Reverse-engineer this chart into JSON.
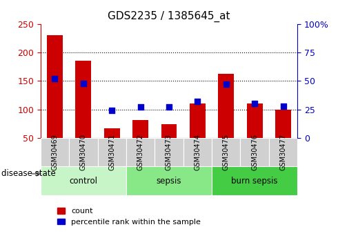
{
  "title": "GDS2235 / 1385645_at",
  "samples": [
    "GSM30469",
    "GSM30470",
    "GSM30471",
    "GSM30472",
    "GSM30473",
    "GSM30474",
    "GSM30475",
    "GSM30476",
    "GSM30477"
  ],
  "counts": [
    230,
    185,
    67,
    82,
    74,
    110,
    163,
    110,
    100
  ],
  "percentiles": [
    52,
    48,
    24,
    27,
    27,
    32,
    47,
    30,
    28
  ],
  "groups": [
    {
      "label": "control",
      "indices": [
        0,
        1,
        2
      ],
      "color": "#c8f5c8"
    },
    {
      "label": "sepsis",
      "indices": [
        3,
        4,
        5
      ],
      "color": "#88e888"
    },
    {
      "label": "burn sepsis",
      "indices": [
        6,
        7,
        8
      ],
      "color": "#44cc44"
    }
  ],
  "bar_color": "#cc0000",
  "dot_color": "#0000cc",
  "ylim_left": [
    50,
    250
  ],
  "ylim_right": [
    0,
    100
  ],
  "yticks_left": [
    50,
    100,
    150,
    200,
    250
  ],
  "yticks_right": [
    0,
    25,
    50,
    75,
    100
  ],
  "grid_dotted_at": [
    100,
    150,
    200
  ],
  "tick_label_color_left": "#cc0000",
  "tick_label_color_right": "#0000cc",
  "bar_width": 0.55,
  "dot_size": 40,
  "legend_count_label": "count",
  "legend_percentile_label": "percentile rank within the sample",
  "disease_state_label": "disease state",
  "xlabel_bg_color": "#d0d0d0",
  "figsize": [
    4.9,
    3.45
  ],
  "dpi": 100
}
